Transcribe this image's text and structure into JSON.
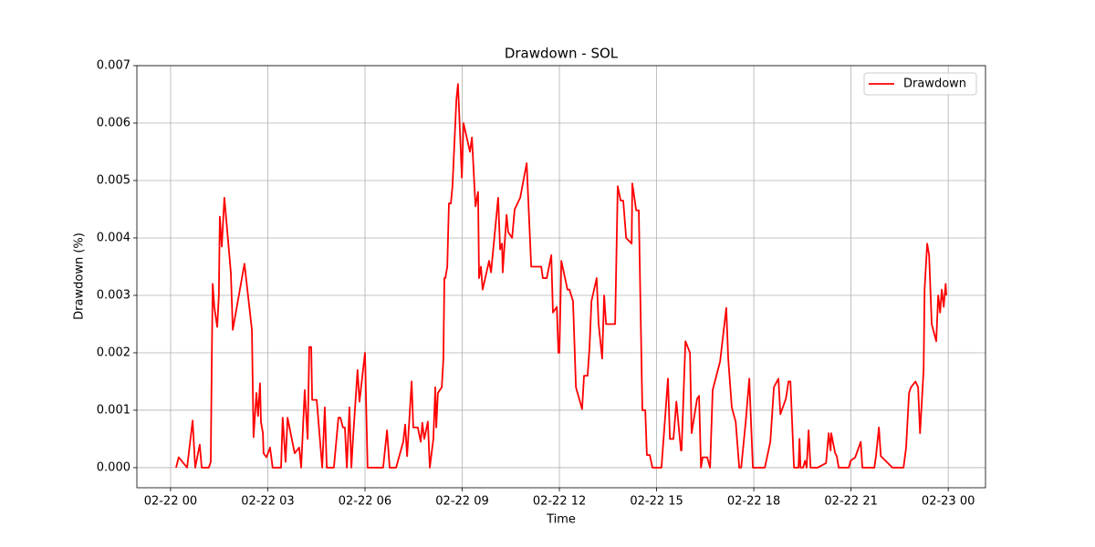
{
  "chart_data": {
    "type": "line",
    "title": "Drawdown - SOL",
    "x_label": "Time",
    "y_label": "Drawdown (%)",
    "x": [
      0.17,
      0.25,
      0.51,
      0.68,
      0.76,
      0.9,
      0.96,
      1.18,
      1.24,
      1.27,
      1.3,
      1.35,
      1.44,
      1.49,
      1.52,
      1.58,
      1.66,
      1.86,
      1.92,
      2.28,
      2.51,
      2.56,
      2.65,
      2.7,
      2.76,
      2.79,
      2.85,
      2.87,
      2.96,
      3.07,
      3.15,
      3.41,
      3.46,
      3.55,
      3.61,
      3.83,
      3.97,
      4.03,
      4.14,
      4.23,
      4.28,
      4.34,
      4.37,
      4.51,
      4.68,
      4.76,
      4.82,
      5.04,
      5.18,
      5.24,
      5.32,
      5.38,
      5.44,
      5.52,
      5.58,
      5.63,
      5.77,
      5.83,
      6.0,
      6.08,
      6.56,
      6.68,
      6.76,
      6.96,
      7.18,
      7.24,
      7.3,
      7.44,
      7.49,
      7.63,
      7.72,
      7.77,
      7.83,
      7.94,
      8.0,
      8.11,
      8.17,
      8.2,
      8.25,
      8.37,
      8.42,
      8.45,
      8.48,
      8.54,
      8.59,
      8.65,
      8.7,
      8.82,
      8.87,
      8.99,
      9.04,
      9.24,
      9.3,
      9.41,
      9.49,
      9.52,
      9.58,
      9.63,
      9.83,
      9.89,
      10.11,
      10.17,
      10.23,
      10.25,
      10.37,
      10.42,
      10.54,
      10.62,
      10.79,
      10.99,
      11.13,
      11.44,
      11.49,
      11.61,
      11.75,
      11.8,
      11.92,
      11.97,
      12.0,
      12.06,
      12.25,
      12.31,
      12.42,
      12.51,
      12.7,
      12.76,
      12.87,
      12.93,
      12.99,
      13.15,
      13.21,
      13.32,
      13.38,
      13.44,
      13.52,
      13.58,
      13.72,
      13.8,
      13.89,
      13.97,
      14.06,
      14.23,
      14.25,
      14.37,
      14.45,
      14.56,
      14.65,
      14.7,
      14.79,
      14.87,
      15.15,
      15.35,
      15.41,
      15.52,
      15.61,
      15.75,
      15.77,
      15.89,
      16.03,
      16.08,
      16.25,
      16.31,
      16.37,
      16.42,
      16.56,
      16.65,
      16.73,
      16.96,
      17.15,
      17.21,
      17.32,
      17.44,
      17.55,
      17.61,
      17.75,
      17.86,
      17.97,
      18.34,
      18.51,
      18.62,
      18.76,
      18.82,
      18.99,
      19.07,
      19.13,
      19.24,
      19.38,
      19.41,
      19.44,
      19.52,
      19.58,
      19.63,
      19.69,
      19.75,
      19.97,
      20.23,
      20.31,
      20.37,
      20.39,
      20.51,
      20.56,
      20.62,
      20.93,
      20.99,
      21.13,
      21.3,
      21.35,
      21.72,
      21.77,
      21.86,
      21.92,
      22.28,
      22.62,
      22.7,
      22.79,
      22.85,
      22.99,
      23.07,
      23.13,
      23.24,
      23.27,
      23.35,
      23.41,
      23.49,
      23.63,
      23.69,
      23.75,
      23.8,
      23.86,
      23.92,
      23.94
    ],
    "series": [
      {
        "name": "Drawdown",
        "color": "#ff0000",
        "values": [
          0,
          0.00018,
          0,
          0.00082,
          0,
          0.0004,
          0,
          0,
          0.0001,
          0.0018,
          0.0032,
          0.0028,
          0.00245,
          0.003,
          0.00437,
          0.00385,
          0.0047,
          0.0034,
          0.0024,
          0.00355,
          0.0024,
          0.00053,
          0.0013,
          0.0009,
          0.00147,
          0.0008,
          0.0006,
          0.00025,
          0.00018,
          0.00035,
          0,
          0,
          0.00087,
          0.0001,
          0.00087,
          0.00025,
          0.00035,
          0,
          0.00135,
          0.0005,
          0.0021,
          0.0021,
          0.00118,
          0.00118,
          0,
          0.00105,
          0,
          0,
          0.00087,
          0.00087,
          0.0007,
          0.0007,
          0,
          0.00105,
          0,
          0.0005,
          0.0017,
          0.00115,
          0.002,
          0,
          0,
          0.00065,
          0,
          0,
          0.00045,
          0.00075,
          0.0002,
          0.0015,
          0.0007,
          0.0007,
          0.00045,
          0.00078,
          0.0005,
          0.0008,
          0,
          0.0005,
          0.0014,
          0.0007,
          0.0013,
          0.0014,
          0.0019,
          0.0033,
          0.0033,
          0.0035,
          0.0046,
          0.0046,
          0.0049,
          0.0064,
          0.00668,
          0.00505,
          0.006,
          0.0055,
          0.00575,
          0.00455,
          0.0048,
          0.0033,
          0.0035,
          0.0031,
          0.0036,
          0.0034,
          0.0047,
          0.0038,
          0.0039,
          0.0034,
          0.0044,
          0.0041,
          0.004,
          0.0045,
          0.0047,
          0.0053,
          0.0035,
          0.0035,
          0.0033,
          0.0033,
          0.0037,
          0.0027,
          0.0028,
          0.002,
          0.002,
          0.0036,
          0.0031,
          0.0031,
          0.0029,
          0.0014,
          0.00102,
          0.0016,
          0.0016,
          0.0021,
          0.0029,
          0.0033,
          0.0025,
          0.0019,
          0.003,
          0.0025,
          0.0025,
          0.0025,
          0.0025,
          0.0049,
          0.00465,
          0.00465,
          0.004,
          0.0039,
          0.00495,
          0.00448,
          0.00448,
          0.001,
          0.001,
          0.00022,
          0.00022,
          0,
          0,
          0.00155,
          0.0005,
          0.0005,
          0.00115,
          0.0003,
          0.0003,
          0.0022,
          0.002,
          0.0006,
          0.0012,
          0.00125,
          0,
          0.00018,
          0.00018,
          0,
          0.00135,
          0.00185,
          0.00278,
          0.0019,
          0.00105,
          0.0008,
          0,
          0,
          0.0008,
          0.00155,
          0,
          0,
          0.00045,
          0.0014,
          0.00155,
          0.00093,
          0.0012,
          0.0015,
          0.0015,
          0,
          0,
          0.0005,
          0,
          0,
          0.00012,
          0,
          0.00065,
          0,
          0,
          8e-05,
          0.0006,
          0.0003,
          0.0006,
          0.00025,
          0.0002,
          0,
          0,
          0.00012,
          0.00018,
          0.00045,
          0,
          0,
          0.0002,
          0.0007,
          0.0002,
          0,
          0,
          0.00035,
          0.0013,
          0.0014,
          0.0015,
          0.0014,
          0.0006,
          0.0017,
          0.0031,
          0.0039,
          0.0037,
          0.0025,
          0.0022,
          0.003,
          0.0027,
          0.0031,
          0.0028,
          0.0032,
          0.003
        ]
      }
    ],
    "xlim": [
      -1.04,
      25.15
    ],
    "ylim": [
      -0.00035,
      0.007
    ],
    "xticks": [
      {
        "value": 0,
        "label": "02-22 00"
      },
      {
        "value": 3,
        "label": "02-22 03"
      },
      {
        "value": 6,
        "label": "02-22 06"
      },
      {
        "value": 9,
        "label": "02-22 09"
      },
      {
        "value": 12,
        "label": "02-22 12"
      },
      {
        "value": 15,
        "label": "02-22 15"
      },
      {
        "value": 18,
        "label": "02-22 18"
      },
      {
        "value": 21,
        "label": "02-22 21"
      },
      {
        "value": 24,
        "label": "02-23 00"
      }
    ],
    "yticks": [
      {
        "value": 0,
        "label": "0.000"
      },
      {
        "value": 0.001,
        "label": "0.001"
      },
      {
        "value": 0.002,
        "label": "0.002"
      },
      {
        "value": 0.003,
        "label": "0.003"
      },
      {
        "value": 0.004,
        "label": "0.004"
      },
      {
        "value": 0.005,
        "label": "0.005"
      },
      {
        "value": 0.006,
        "label": "0.006"
      },
      {
        "value": 0.007,
        "label": "0.007"
      }
    ],
    "grid": true,
    "legend": "upper right"
  }
}
